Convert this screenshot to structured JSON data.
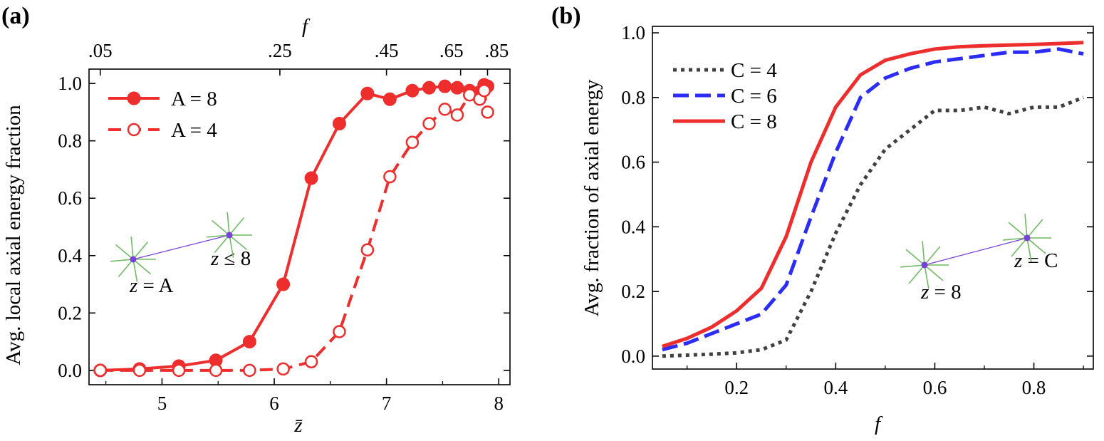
{
  "panels": {
    "a": {
      "label": "(a)",
      "top_axis_title": "f",
      "top_ticks": [
        ".05",
        ".25",
        ".45",
        ".65",
        ".85"
      ],
      "inset": {
        "left_label_var": "z",
        "left_label_rest": " = A",
        "right_label_var": "z",
        "right_label_rest": " ≤ 8"
      }
    },
    "b": {
      "label": "(b)",
      "inset": {
        "left_label_var": "z",
        "left_label_rest": " = 8",
        "right_label_var": "z",
        "right_label_rest": " = C"
      }
    }
  },
  "colors": {
    "red": "#ee2d2d",
    "blue": "#2b2cf5",
    "gray": "#404040",
    "inset_green": "#6dbb62",
    "inset_purple": "#7a3fd6"
  },
  "chart_data": [
    {
      "type": "line",
      "title": "",
      "xlabel": "z̄",
      "ylabel": "Avg. local axial energy fraction",
      "xlim": [
        4.35,
        8.1
      ],
      "ylim": [
        -0.05,
        1.05
      ],
      "xticks": [
        5,
        6,
        7,
        8
      ],
      "yticks": [
        0.0,
        0.2,
        0.4,
        0.6,
        0.8,
        1.0
      ],
      "ytick_labels": [
        "0.0",
        "0.2",
        "0.4",
        "0.6",
        "0.8",
        "1.0"
      ],
      "top_axis": {
        "label": "f",
        "ticks": [
          ".05",
          ".25",
          ".45",
          ".65",
          ".85"
        ],
        "positions_z": [
          4.45,
          6.05,
          7.0,
          7.66,
          7.9
        ]
      },
      "legend_position": "top-left",
      "series": [
        {
          "name": "A = 8",
          "marker": "filled-circle",
          "linestyle": "solid",
          "x": [
            4.45,
            4.8,
            5.15,
            5.48,
            5.78,
            6.08,
            6.33,
            6.58,
            6.83,
            7.03,
            7.23,
            7.38,
            7.52,
            7.63,
            7.74,
            7.83,
            7.87,
            7.9
          ],
          "y": [
            0.0,
            0.005,
            0.015,
            0.035,
            0.1,
            0.3,
            0.67,
            0.86,
            0.965,
            0.945,
            0.975,
            0.985,
            0.99,
            0.985,
            0.975,
            0.97,
            0.995,
            0.99
          ]
        },
        {
          "name": "A = 4",
          "marker": "open-circle",
          "linestyle": "dashed",
          "x": [
            4.45,
            4.8,
            5.15,
            5.48,
            5.78,
            6.08,
            6.33,
            6.58,
            6.83,
            7.03,
            7.23,
            7.38,
            7.52,
            7.63,
            7.74,
            7.83,
            7.87,
            7.9
          ],
          "y": [
            0.0,
            0.0,
            0.0,
            0.0,
            0.0,
            0.005,
            0.03,
            0.135,
            0.42,
            0.675,
            0.795,
            0.86,
            0.91,
            0.89,
            0.96,
            0.945,
            0.975,
            0.9
          ]
        }
      ]
    },
    {
      "type": "line",
      "title": "",
      "xlabel": "f",
      "ylabel": "Avg. fraction of axial energy",
      "xlim": [
        0.03,
        0.92
      ],
      "ylim": [
        -0.04,
        1.02
      ],
      "xticks": [
        0.2,
        0.4,
        0.6,
        0.8
      ],
      "xtick_labels": [
        "0.2",
        "0.4",
        "0.6",
        "0.8"
      ],
      "yticks": [
        0.0,
        0.2,
        0.4,
        0.6,
        0.8,
        1.0
      ],
      "ytick_labels": [
        "0.0",
        "0.2",
        "0.4",
        "0.6",
        "0.8",
        "1.0"
      ],
      "legend_position": "top-left",
      "series": [
        {
          "name": "C = 4",
          "linestyle": "dotted",
          "x": [
            0.05,
            0.1,
            0.15,
            0.2,
            0.25,
            0.3,
            0.35,
            0.4,
            0.45,
            0.5,
            0.55,
            0.6,
            0.65,
            0.7,
            0.75,
            0.8,
            0.85,
            0.9
          ],
          "y": [
            0.0,
            0.003,
            0.006,
            0.01,
            0.02,
            0.05,
            0.2,
            0.38,
            0.53,
            0.64,
            0.7,
            0.76,
            0.76,
            0.77,
            0.75,
            0.77,
            0.77,
            0.8
          ]
        },
        {
          "name": "C = 6",
          "linestyle": "dashed",
          "x": [
            0.05,
            0.1,
            0.15,
            0.2,
            0.25,
            0.3,
            0.35,
            0.4,
            0.45,
            0.5,
            0.55,
            0.6,
            0.65,
            0.7,
            0.75,
            0.8,
            0.85,
            0.9
          ],
          "y": [
            0.02,
            0.04,
            0.07,
            0.1,
            0.13,
            0.22,
            0.43,
            0.63,
            0.8,
            0.86,
            0.89,
            0.91,
            0.92,
            0.93,
            0.94,
            0.94,
            0.95,
            0.935
          ]
        },
        {
          "name": "C = 8",
          "linestyle": "solid",
          "x": [
            0.05,
            0.1,
            0.15,
            0.2,
            0.25,
            0.3,
            0.35,
            0.4,
            0.45,
            0.5,
            0.55,
            0.6,
            0.65,
            0.7,
            0.75,
            0.8,
            0.85,
            0.9
          ],
          "y": [
            0.03,
            0.055,
            0.09,
            0.14,
            0.21,
            0.37,
            0.6,
            0.77,
            0.87,
            0.915,
            0.935,
            0.95,
            0.957,
            0.96,
            0.962,
            0.964,
            0.967,
            0.97
          ]
        }
      ]
    }
  ]
}
